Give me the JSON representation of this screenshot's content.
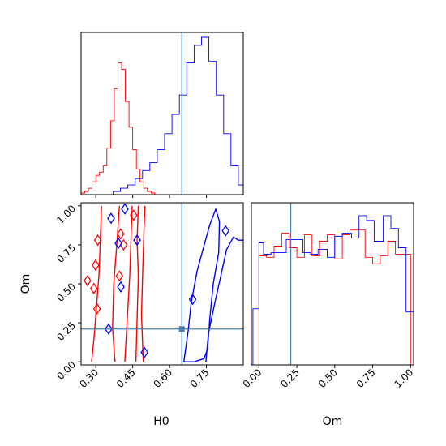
{
  "chart_data": [
    {
      "type": "histogram",
      "panel": "H0 marginal",
      "xlim": [
        0.24,
        0.9
      ],
      "truth": 0.65,
      "series": [
        {
          "color": "#ff0000",
          "bin_edges": [
            0.24,
            0.255,
            0.27,
            0.285,
            0.3,
            0.315,
            0.33,
            0.345,
            0.36,
            0.375,
            0.39,
            0.405,
            0.42,
            0.435,
            0.45,
            0.465,
            0.48,
            0.495,
            0.51,
            0.525,
            0.54
          ],
          "counts": [
            0.01,
            0.02,
            0.04,
            0.08,
            0.12,
            0.14,
            0.18,
            0.29,
            0.46,
            0.66,
            0.82,
            0.78,
            0.58,
            0.42,
            0.28,
            0.16,
            0.08,
            0.04,
            0.02,
            0.01
          ]
        },
        {
          "color": "#0000ff",
          "bin_edges": [
            0.37,
            0.4,
            0.43,
            0.46,
            0.49,
            0.52,
            0.55,
            0.58,
            0.61,
            0.64,
            0.67,
            0.7,
            0.73,
            0.76,
            0.79,
            0.82,
            0.85,
            0.88,
            0.9
          ],
          "counts": [
            0.02,
            0.04,
            0.06,
            0.1,
            0.15,
            0.2,
            0.28,
            0.38,
            0.5,
            0.62,
            0.82,
            0.93,
            0.98,
            0.83,
            0.62,
            0.38,
            0.18,
            0.06
          ]
        }
      ]
    },
    {
      "type": "contour",
      "panel": "H0 vs Om joint",
      "xlabel": "H0",
      "ylabel": "Om",
      "xlim": [
        0.24,
        0.9
      ],
      "ylim": [
        -0.02,
        1.02
      ],
      "xticks": [
        0.3,
        0.45,
        0.6,
        0.75
      ],
      "xtick_labels": [
        "0.30",
        "0.45",
        "0.60",
        "0.75"
      ],
      "yticks": [
        0.0,
        0.25,
        0.5,
        0.75,
        1.0
      ],
      "ytick_labels": [
        "0.00",
        "0.25",
        "0.50",
        "0.75",
        "1.00"
      ],
      "truth": {
        "H0": 0.65,
        "Om": 0.21
      },
      "series": [
        {
          "color": "#ff0000",
          "contours": [
            [
              [
                0.283,
                0.0
              ],
              [
                0.293,
                0.16
              ],
              [
                0.303,
                0.36
              ],
              [
                0.313,
                0.56
              ],
              [
                0.318,
                0.76
              ],
              [
                0.323,
                1.0
              ]
            ],
            [
              [
                0.378,
                0.0
              ],
              [
                0.368,
                0.22
              ],
              [
                0.373,
                0.5
              ],
              [
                0.386,
                0.76
              ],
              [
                0.396,
                1.0
              ]
            ],
            [
              [
                0.418,
                0.0
              ],
              [
                0.428,
                0.28
              ],
              [
                0.438,
                0.55
              ],
              [
                0.443,
                0.78
              ],
              [
                0.448,
                1.0
              ]
            ],
            [
              [
                0.463,
                0.0
              ],
              [
                0.468,
                0.28
              ],
              [
                0.473,
                0.55
              ],
              [
                0.468,
                0.78
              ],
              [
                0.473,
                1.0
              ]
            ],
            [
              [
                0.493,
                0.0
              ],
              [
                0.486,
                0.3
              ],
              [
                0.491,
                0.6
              ],
              [
                0.496,
                0.85
              ],
              [
                0.5,
                1.0
              ]
            ]
          ],
          "islands": [
            [
              0.266,
              0.52
            ],
            [
              0.299,
              0.62
            ],
            [
              0.308,
              0.78
            ],
            [
              0.292,
              0.47
            ],
            [
              0.305,
              0.34
            ],
            [
              0.396,
              0.55
            ],
            [
              0.401,
              0.82
            ],
            [
              0.413,
              0.75
            ],
            [
              0.454,
              0.94
            ]
          ]
        },
        {
          "color": "#0000ff",
          "contours": [
            [
              [
                0.658,
                0.0
              ],
              [
                0.676,
                0.2
              ],
              [
                0.688,
                0.38
              ],
              [
                0.712,
                0.58
              ],
              [
                0.736,
                0.72
              ],
              [
                0.764,
                0.88
              ],
              [
                0.788,
                0.98
              ],
              [
                0.803,
                0.9
              ],
              [
                0.8,
                0.7
              ],
              [
                0.778,
                0.5
              ],
              [
                0.764,
                0.28
              ],
              [
                0.754,
                0.08
              ],
              [
                0.74,
                0.02
              ],
              [
                0.7,
                0.0
              ],
              [
                0.658,
                0.0
              ]
            ],
            [
              [
                0.748,
                0.0
              ],
              [
                0.758,
                0.18
              ],
              [
                0.782,
                0.36
              ],
              [
                0.81,
                0.56
              ],
              [
                0.832,
                0.72
              ],
              [
                0.86,
                0.8
              ],
              [
                0.88,
                0.78
              ],
              [
                0.9,
                0.78
              ]
            ]
          ],
          "islands": [
            [
              0.362,
              0.92
            ],
            [
              0.392,
              0.76
            ],
            [
              0.418,
              0.98
            ],
            [
              0.468,
              0.78
            ],
            [
              0.402,
              0.48
            ],
            [
              0.352,
              0.21
            ],
            [
              0.498,
              0.06
            ],
            [
              0.828,
              0.84
            ],
            [
              0.694,
              0.4
            ]
          ]
        }
      ]
    },
    {
      "type": "histogram",
      "panel": "Om marginal",
      "xlabel": "Om",
      "xlim": [
        -0.05,
        1.02
      ],
      "xticks": [
        0.0,
        0.25,
        0.5,
        0.75,
        1.0
      ],
      "xtick_labels": [
        "0.00",
        "0.25",
        "0.50",
        "0.75",
        "1.00"
      ],
      "truth": 0.21,
      "series": [
        {
          "color": "#ff0000",
          "bin_edges": [
            0.0,
            0.05,
            0.1,
            0.15,
            0.2,
            0.25,
            0.3,
            0.35,
            0.4,
            0.45,
            0.5,
            0.55,
            0.6,
            0.65,
            0.7,
            0.75,
            0.8,
            0.85,
            0.9,
            0.95,
            1.0
          ],
          "counts": [
            0.68,
            0.67,
            0.74,
            0.82,
            0.73,
            0.67,
            0.81,
            0.68,
            0.77,
            0.81,
            0.66,
            0.81,
            0.84,
            0.84,
            0.67,
            0.63,
            0.68,
            0.77,
            0.69,
            0.69
          ]
        },
        {
          "color": "#0000ff",
          "bin_edges": [
            -0.04,
            0.0,
            0.03,
            0.08,
            0.13,
            0.18,
            0.23,
            0.29,
            0.34,
            0.39,
            0.45,
            0.5,
            0.55,
            0.61,
            0.66,
            0.71,
            0.76,
            0.82,
            0.87,
            0.92,
            0.97,
            1.02
          ],
          "counts": [
            0.35,
            0.76,
            0.69,
            0.7,
            0.7,
            0.78,
            0.78,
            0.7,
            0.69,
            0.72,
            0.67,
            0.8,
            0.82,
            0.79,
            0.93,
            0.9,
            0.77,
            0.93,
            0.85,
            0.73,
            0.33
          ]
        }
      ]
    }
  ]
}
